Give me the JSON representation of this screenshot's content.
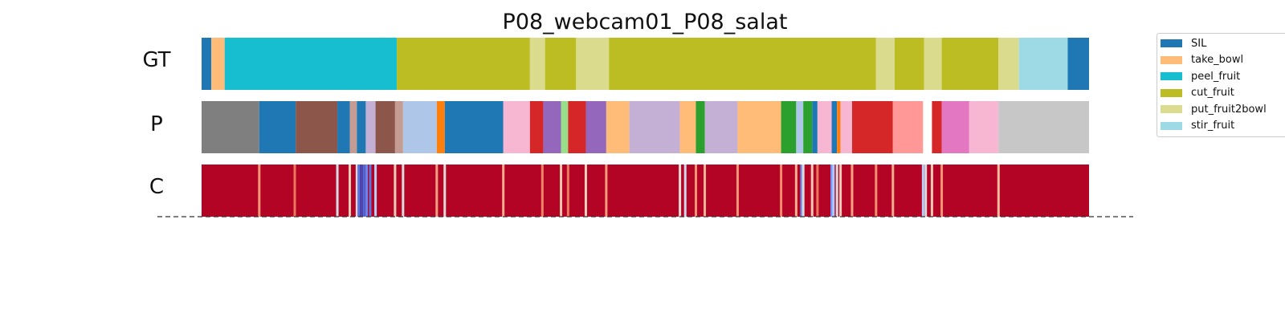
{
  "chart_data": {
    "type": "segmentation",
    "title": "P08_webcam01_P08_salat",
    "x_range": [
      0,
      1
    ],
    "rows": [
      {
        "label": "GT",
        "segments": [
          {
            "start": 0.0,
            "end": 0.011,
            "color": "#1f77b4"
          },
          {
            "start": 0.011,
            "end": 0.026,
            "color": "#ffbb78"
          },
          {
            "start": 0.026,
            "end": 0.22,
            "color": "#17becf"
          },
          {
            "start": 0.22,
            "end": 0.37,
            "color": "#bcbd22"
          },
          {
            "start": 0.37,
            "end": 0.387,
            "color": "#dbdb8d"
          },
          {
            "start": 0.387,
            "end": 0.422,
            "color": "#bcbd22"
          },
          {
            "start": 0.422,
            "end": 0.459,
            "color": "#dbdb8d"
          },
          {
            "start": 0.459,
            "end": 0.76,
            "color": "#bcbd22"
          },
          {
            "start": 0.76,
            "end": 0.781,
            "color": "#dbdb8d"
          },
          {
            "start": 0.781,
            "end": 0.814,
            "color": "#bcbd22"
          },
          {
            "start": 0.814,
            "end": 0.834,
            "color": "#dbdb8d"
          },
          {
            "start": 0.834,
            "end": 0.898,
            "color": "#bcbd22"
          },
          {
            "start": 0.898,
            "end": 0.921,
            "color": "#dbdb8d"
          },
          {
            "start": 0.921,
            "end": 0.976,
            "color": "#9edae5"
          },
          {
            "start": 0.976,
            "end": 1.0,
            "color": "#1f77b4"
          }
        ]
      },
      {
        "label": "P",
        "segments": [
          {
            "start": 0.0,
            "end": 0.065,
            "color": "#7f7f7f"
          },
          {
            "start": 0.065,
            "end": 0.106,
            "color": "#1f77b4"
          },
          {
            "start": 0.106,
            "end": 0.153,
            "color": "#8c564b"
          },
          {
            "start": 0.153,
            "end": 0.167,
            "color": "#1f77b4"
          },
          {
            "start": 0.167,
            "end": 0.175,
            "color": "#c49c94"
          },
          {
            "start": 0.175,
            "end": 0.185,
            "color": "#1f77b4"
          },
          {
            "start": 0.185,
            "end": 0.196,
            "color": "#c5b0d5"
          },
          {
            "start": 0.196,
            "end": 0.218,
            "color": "#8c564b"
          },
          {
            "start": 0.218,
            "end": 0.227,
            "color": "#c49c94"
          },
          {
            "start": 0.227,
            "end": 0.265,
            "color": "#aec7e8"
          },
          {
            "start": 0.265,
            "end": 0.274,
            "color": "#ff7f0e"
          },
          {
            "start": 0.274,
            "end": 0.34,
            "color": "#1f77b4"
          },
          {
            "start": 0.34,
            "end": 0.37,
            "color": "#f7b6d2"
          },
          {
            "start": 0.37,
            "end": 0.385,
            "color": "#d62728"
          },
          {
            "start": 0.385,
            "end": 0.405,
            "color": "#9467bd"
          },
          {
            "start": 0.405,
            "end": 0.413,
            "color": "#98df8a"
          },
          {
            "start": 0.413,
            "end": 0.433,
            "color": "#d62728"
          },
          {
            "start": 0.433,
            "end": 0.456,
            "color": "#9467bd"
          },
          {
            "start": 0.456,
            "end": 0.482,
            "color": "#ffbb78"
          },
          {
            "start": 0.482,
            "end": 0.539,
            "color": "#c5b0d5"
          },
          {
            "start": 0.539,
            "end": 0.557,
            "color": "#ffbb78"
          },
          {
            "start": 0.557,
            "end": 0.567,
            "color": "#2ca02c"
          },
          {
            "start": 0.567,
            "end": 0.604,
            "color": "#c5b0d5"
          },
          {
            "start": 0.604,
            "end": 0.653,
            "color": "#ffbb78"
          },
          {
            "start": 0.653,
            "end": 0.67,
            "color": "#2ca02c"
          },
          {
            "start": 0.67,
            "end": 0.678,
            "color": "#aec7e8"
          },
          {
            "start": 0.678,
            "end": 0.688,
            "color": "#2ca02c"
          },
          {
            "start": 0.688,
            "end": 0.694,
            "color": "#1f77b4"
          },
          {
            "start": 0.694,
            "end": 0.71,
            "color": "#f7b6d2"
          },
          {
            "start": 0.71,
            "end": 0.716,
            "color": "#1f77b4"
          },
          {
            "start": 0.716,
            "end": 0.72,
            "color": "#ff7f0e"
          },
          {
            "start": 0.72,
            "end": 0.733,
            "color": "#f7b6d2"
          },
          {
            "start": 0.733,
            "end": 0.779,
            "color": "#d62728"
          },
          {
            "start": 0.779,
            "end": 0.813,
            "color": "#ff9896"
          },
          {
            "start": 0.813,
            "end": 0.823,
            "color": "#ffffff"
          },
          {
            "start": 0.823,
            "end": 0.834,
            "color": "#d62728"
          },
          {
            "start": 0.834,
            "end": 0.865,
            "color": "#e377c2"
          },
          {
            "start": 0.865,
            "end": 0.898,
            "color": "#f7b6d2"
          },
          {
            "start": 0.898,
            "end": 1.0,
            "color": "#c7c7c7"
          }
        ]
      },
      {
        "label": "C",
        "base_color": "#b40426",
        "stripes": [
          {
            "x": 0.065,
            "color": "#f4987a"
          },
          {
            "x": 0.105,
            "color": "#e9785d"
          },
          {
            "x": 0.153,
            "color": "#d6dce4"
          },
          {
            "x": 0.167,
            "color": "#f1cdba"
          },
          {
            "x": 0.175,
            "color": "#e7d7ce"
          },
          {
            "x": 0.177,
            "color": "#5977e3"
          },
          {
            "x": 0.18,
            "color": "#3b4cc0"
          },
          {
            "x": 0.183,
            "color": "#4f69d9"
          },
          {
            "x": 0.186,
            "color": "#6788ee"
          },
          {
            "x": 0.19,
            "color": "#5a78e4"
          },
          {
            "x": 0.196,
            "color": "#b9d0f9"
          },
          {
            "x": 0.218,
            "color": "#f2cbb7"
          },
          {
            "x": 0.227,
            "color": "#dddcdc"
          },
          {
            "x": 0.265,
            "color": "#f5a081"
          },
          {
            "x": 0.274,
            "color": "#e0dbd8"
          },
          {
            "x": 0.34,
            "color": "#f7ac8e"
          },
          {
            "x": 0.384,
            "color": "#ee8468"
          },
          {
            "x": 0.405,
            "color": "#f4c5ad"
          },
          {
            "x": 0.413,
            "color": "#e97a5f"
          },
          {
            "x": 0.433,
            "color": "#f1cdba"
          },
          {
            "x": 0.456,
            "color": "#f59c7d"
          },
          {
            "x": 0.539,
            "color": "#e2dad5"
          },
          {
            "x": 0.545,
            "color": "#cbd8ee"
          },
          {
            "x": 0.557,
            "color": "#f39475"
          },
          {
            "x": 0.567,
            "color": "#f7b497"
          },
          {
            "x": 0.604,
            "color": "#f4987a"
          },
          {
            "x": 0.653,
            "color": "#f18d6f"
          },
          {
            "x": 0.67,
            "color": "#f7af91"
          },
          {
            "x": 0.676,
            "color": "#6b8df0"
          },
          {
            "x": 0.678,
            "color": "#dcdddd"
          },
          {
            "x": 0.688,
            "color": "#f2cab5"
          },
          {
            "x": 0.694,
            "color": "#e9785d"
          },
          {
            "x": 0.71,
            "color": "#7597f6"
          },
          {
            "x": 0.712,
            "color": "#aec9fc"
          },
          {
            "x": 0.716,
            "color": "#dedcdb"
          },
          {
            "x": 0.72,
            "color": "#efcebd"
          },
          {
            "x": 0.733,
            "color": "#f6a385"
          },
          {
            "x": 0.76,
            "color": "#f18f71"
          },
          {
            "x": 0.779,
            "color": "#f7ad90"
          },
          {
            "x": 0.813,
            "color": "#b7cff9"
          },
          {
            "x": 0.816,
            "color": "#dddcdc"
          },
          {
            "x": 0.823,
            "color": "#f2c9b4"
          },
          {
            "x": 0.834,
            "color": "#f39778"
          },
          {
            "x": 0.898,
            "color": "#f7ba9f"
          }
        ]
      }
    ],
    "legend": {
      "position": "top-right",
      "entries": [
        {
          "name": "SIL",
          "color": "#1f77b4"
        },
        {
          "name": "take_bowl",
          "color": "#ffbb78"
        },
        {
          "name": "peel_fruit",
          "color": "#17becf"
        },
        {
          "name": "cut_fruit",
          "color": "#bcbd22"
        },
        {
          "name": "put_fruit2bowl",
          "color": "#dbdb8d"
        },
        {
          "name": "stir_fruit",
          "color": "#9edae5"
        }
      ]
    }
  }
}
